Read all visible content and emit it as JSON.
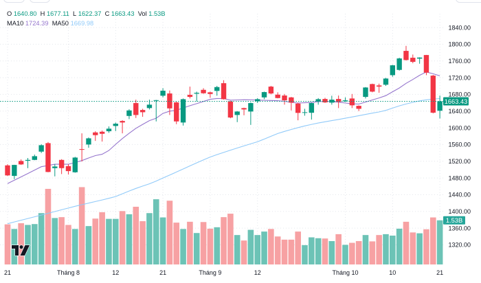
{
  "legend": {
    "open_label": "O",
    "open": "1640.80",
    "high_label": "H",
    "high": "1677.11",
    "low_label": "L",
    "low": "1622.37",
    "close_label": "C",
    "close": "1663.43",
    "vol_label": "Vol",
    "vol": "1.53B",
    "ma10_label": "MA10",
    "ma10": "1724.39",
    "ma50_label": "MA50",
    "ma50": "1669.98"
  },
  "colors": {
    "up": "#089981",
    "down": "#f23645",
    "vol_up": "#6cc3b6",
    "vol_down": "#f7a1a3",
    "ma10": "#9575cd",
    "ma50": "#90caf9",
    "volume_label_bg": "#26a69a",
    "grid": "#e3e6ec",
    "text": "#131722",
    "logo": "#131722"
  },
  "chart_data": {
    "type": "bar",
    "bar_style": "candlestick",
    "title": "",
    "xlabel": "",
    "ylabel": "",
    "ylim": [
      1273,
      1873
    ],
    "volume_ylim": [
      0,
      8.69
    ],
    "grid": true,
    "y_ticks": [
      1840,
      1800,
      1760,
      1720,
      1680,
      1640,
      1600,
      1560,
      1520,
      1480,
      1440,
      1400,
      1360,
      1320
    ],
    "y_tick_labels": [
      "1840.00",
      "1800.00",
      "1760.00",
      "1720.00",
      "1680.00",
      "1640.00",
      "1600.00",
      "1560.00",
      "1520.00",
      "1480.00",
      "1440.00",
      "1400.00",
      "1360.00",
      "1320.00"
    ],
    "x_ticks": [
      {
        "index": 0,
        "label": "21"
      },
      {
        "index": 9,
        "label": "Tháng 8"
      },
      {
        "index": 16,
        "label": "12"
      },
      {
        "index": 23,
        "label": "21"
      },
      {
        "index": 30,
        "label": "Tháng 9"
      },
      {
        "index": 37,
        "label": "12"
      },
      {
        "index": 50,
        "label": "Tháng 10"
      },
      {
        "index": 57,
        "label": "10"
      },
      {
        "index": 64,
        "label": "21"
      }
    ],
    "last_price": 1663.43,
    "last_price_label": "1663.43",
    "last_volume": 1.53,
    "last_volume_label": "1.53B",
    "ohlc_columns": [
      "open",
      "high",
      "low",
      "close"
    ],
    "ohlc": [
      [
        1510.1,
        1512.8,
        1484.9,
        1486.1
      ],
      [
        1484.9,
        1511.5,
        1477.2,
        1511.2
      ],
      [
        1520.6,
        1524.4,
        1511.2,
        1512.4
      ],
      [
        1521.1,
        1527.7,
        1503.5,
        1523.2
      ],
      [
        1523.2,
        1535.9,
        1522.5,
        1532.1
      ],
      [
        1543.0,
        1560.5,
        1539.7,
        1558.4
      ],
      [
        1563.3,
        1566.0,
        1493.6,
        1494.3
      ],
      [
        1503.5,
        1512.9,
        1483.8,
        1507.4
      ],
      [
        1523.2,
        1524.9,
        1489.3,
        1503.5
      ],
      [
        1508.4,
        1512.9,
        1488.2,
        1496.4
      ],
      [
        1493.6,
        1530.5,
        1492.5,
        1528.8
      ],
      [
        1549.0,
        1586.8,
        1519.4,
        1547.4
      ],
      [
        1560.0,
        1576.9,
        1552.3,
        1574.8
      ],
      [
        1589.0,
        1591.8,
        1568.7,
        1582.4
      ],
      [
        1590.6,
        1593.4,
        1567.1,
        1585.7
      ],
      [
        1591.8,
        1603.3,
        1588.0,
        1597.9
      ],
      [
        1604.4,
        1612.7,
        1592.2,
        1609.8
      ],
      [
        1616.4,
        1618.1,
        1586.8,
        1612.7
      ],
      [
        1628.4,
        1644.4,
        1620.9,
        1641.6
      ],
      [
        1659.2,
        1667.4,
        1623.5,
        1630.7
      ],
      [
        1642.7,
        1645.5,
        1626.3,
        1637.3
      ],
      [
        1647.2,
        1667.4,
        1643.9,
        1655.4
      ],
      [
        1664.6,
        1666.8,
        1615.3,
        1666.2
      ],
      [
        1676.8,
        1694.8,
        1672.8,
        1688.8
      ],
      [
        1682.2,
        1689.3,
        1630.7,
        1646.5
      ],
      [
        1660.8,
        1663.0,
        1608.7,
        1615.3
      ],
      [
        1612.7,
        1670.2,
        1605.4,
        1668.5
      ],
      [
        1678.9,
        1698.6,
        1670.2,
        1674.0
      ],
      [
        1681.7,
        1686.6,
        1663.0,
        1683.8
      ],
      [
        1690.9,
        1694.8,
        1681.5,
        1682.7
      ],
      [
        1685.0,
        1686.6,
        1671.8,
        1681.0
      ],
      [
        1688.3,
        1700.3,
        1676.8,
        1697.5
      ],
      [
        1706.8,
        1713.9,
        1667.5,
        1668.5
      ],
      [
        1663.0,
        1664.6,
        1622.9,
        1624.6
      ],
      [
        1630.7,
        1640.0,
        1613.6,
        1639.0
      ],
      [
        1647.2,
        1648.2,
        1630.0,
        1643.9
      ],
      [
        1639.0,
        1660.8,
        1607.0,
        1659.2
      ],
      [
        1663.6,
        1671.1,
        1659.2,
        1668.5
      ],
      [
        1672.8,
        1686.6,
        1668.5,
        1685.5
      ],
      [
        1698.6,
        1700.3,
        1680.0,
        1682.2
      ],
      [
        1679.4,
        1685.0,
        1670.5,
        1671.2
      ],
      [
        1677.3,
        1681.0,
        1655.4,
        1665.7
      ],
      [
        1672.8,
        1674.0,
        1641.6,
        1660.3
      ],
      [
        1658.0,
        1660.3,
        1618.0,
        1635.7
      ],
      [
        1636.0,
        1645.5,
        1629.0,
        1637.3
      ],
      [
        1636.0,
        1660.3,
        1619.7,
        1659.2
      ],
      [
        1663.0,
        1671.1,
        1655.4,
        1668.5
      ],
      [
        1669.0,
        1671.8,
        1659.5,
        1660.8
      ],
      [
        1660.3,
        1676.8,
        1655.4,
        1667.4
      ],
      [
        1669.0,
        1677.3,
        1647.2,
        1662.0
      ],
      [
        1663.6,
        1672.8,
        1662.0,
        1665.7
      ],
      [
        1670.2,
        1681.0,
        1647.2,
        1653.8
      ],
      [
        1652.6,
        1653.8,
        1640.0,
        1645.5
      ],
      [
        1674.0,
        1697.5,
        1670.2,
        1696.5
      ],
      [
        1704.7,
        1705.7,
        1685.0,
        1686.6
      ],
      [
        1701.4,
        1705.7,
        1683.8,
        1698.6
      ],
      [
        1703.1,
        1719.5,
        1700.3,
        1717.9
      ],
      [
        1726.0,
        1750.7,
        1722.1,
        1749.6
      ],
      [
        1738.6,
        1767.7,
        1736.9,
        1766.0
      ],
      [
        1784.1,
        1796.1,
        1761.0,
        1762.2
      ],
      [
        1767.7,
        1775.4,
        1754.5,
        1757.8
      ],
      [
        1765.5,
        1768.8,
        1753.4,
        1768.2
      ],
      [
        1774.2,
        1774.5,
        1726.0,
        1732.0
      ],
      [
        1724.9,
        1726.6,
        1634.5,
        1636.2
      ],
      [
        1640.8,
        1677.11,
        1622.37,
        1663.43
      ]
    ],
    "volume_billions": [
      1.39,
      1.23,
      1.43,
      1.37,
      1.4,
      1.78,
      2.62,
      1.61,
      1.64,
      1.37,
      1.23,
      2.68,
      1.33,
      1.59,
      1.81,
      1.58,
      1.58,
      1.85,
      1.74,
      2.0,
      1.5,
      1.78,
      2.26,
      1.63,
      2.21,
      1.45,
      1.23,
      1.48,
      1.09,
      1.47,
      1.24,
      1.29,
      1.64,
      1.76,
      1.02,
      0.83,
      1.2,
      1.02,
      1.14,
      1.23,
      0.97,
      0.86,
      0.86,
      1.14,
      0.67,
      0.94,
      0.91,
      0.9,
      0.81,
      1.05,
      0.68,
      0.75,
      0.81,
      1.02,
      0.8,
      1.02,
      1.05,
      1.0,
      1.24,
      1.48,
      1.11,
      1.08,
      1.22,
      1.63,
      1.53
    ],
    "series": [
      {
        "name": "MA10",
        "color_key": "ma10",
        "values": [
          1466.5,
          1474.5,
          1482.6,
          1490.7,
          1498.9,
          1507.0,
          1509.9,
          1512.9,
          1512.9,
          1512.9,
          1517.0,
          1521.6,
          1527.8,
          1533.6,
          1536.7,
          1545.7,
          1560.5,
          1574.3,
          1586.8,
          1598.8,
          1608.2,
          1617.2,
          1623.0,
          1634.5,
          1639.9,
          1641.9,
          1647.7,
          1652.9,
          1657.9,
          1663.1,
          1668.2,
          1670.2,
          1670.0,
          1666.2,
          1666.7,
          1667.2,
          1667.0,
          1666.4,
          1665.9,
          1665.4,
          1664.9,
          1663.4,
          1660.8,
          1659.3,
          1660.0,
          1660.8,
          1662.5,
          1663.4,
          1662.5,
          1661.5,
          1659.3,
          1657.5,
          1656.9,
          1661.6,
          1666.7,
          1671.5,
          1677.1,
          1686.3,
          1695.3,
          1706.5,
          1715.7,
          1725.7,
          1733.6,
          1729.4,
          1724.39
        ]
      },
      {
        "name": "MA50",
        "color_key": "ma50",
        "values": [
          1370.5,
          1374.8,
          1378.9,
          1383.0,
          1387.1,
          1391.2,
          1395.5,
          1399.6,
          1403.9,
          1408.0,
          1412.3,
          1416.0,
          1419.8,
          1423.6,
          1427.4,
          1431.3,
          1435.6,
          1442.2,
          1448.7,
          1455.0,
          1460.6,
          1466.0,
          1472.6,
          1480.0,
          1486.9,
          1494.3,
          1501.5,
          1508.9,
          1516.1,
          1523.4,
          1530.1,
          1535.9,
          1541.1,
          1546.6,
          1551.7,
          1556.8,
          1561.7,
          1566.6,
          1573.0,
          1579.8,
          1586.3,
          1591.4,
          1596.0,
          1600.5,
          1604.6,
          1608.2,
          1611.5,
          1614.5,
          1617.2,
          1620.0,
          1623.0,
          1626.0,
          1629.1,
          1632.0,
          1635.2,
          1638.0,
          1641.7,
          1647.2,
          1652.6,
          1657.0,
          1661.0,
          1664.5,
          1667.0,
          1668.8,
          1669.98
        ]
      }
    ]
  }
}
